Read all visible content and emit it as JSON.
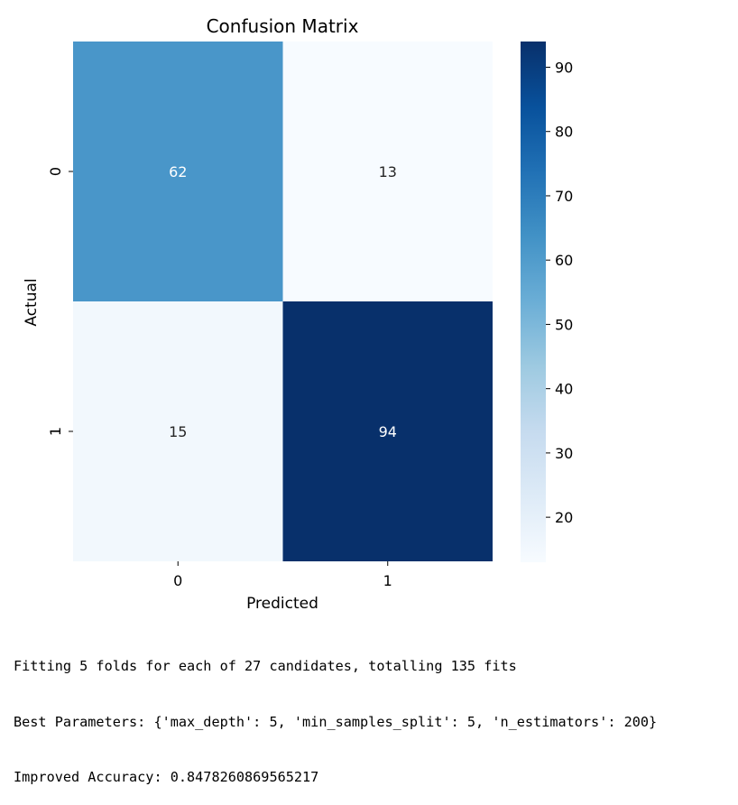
{
  "chart_data": {
    "type": "heatmap",
    "title": "Confusion Matrix",
    "xlabel": "Predicted",
    "ylabel": "Actual",
    "x_categories": [
      "0",
      "1"
    ],
    "y_categories": [
      "0",
      "1"
    ],
    "values": [
      [
        62,
        13
      ],
      [
        15,
        94
      ]
    ],
    "colormap": "Blues",
    "colorbar": {
      "min": 13,
      "max": 94,
      "ticks": [
        20,
        30,
        40,
        50,
        60,
        70,
        80,
        90
      ]
    }
  },
  "console": {
    "lines": [
      "Fitting 5 folds for each of 27 candidates, totalling 135 fits",
      "Best Parameters: {'max_depth': 5, 'min_samples_split': 5, 'n_estimators': 200}",
      "Improved Accuracy: 0.8478260869565217"
    ]
  }
}
